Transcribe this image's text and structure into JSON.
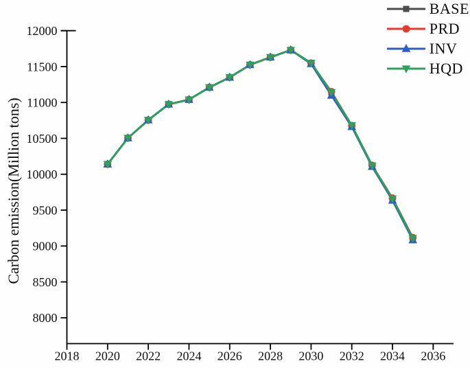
{
  "figure": {
    "background": "#fefefe",
    "axis_color": "#000000",
    "text_color": "#111111"
  },
  "chart_data": {
    "type": "line",
    "title": "",
    "xlabel": "",
    "ylabel": "Carbon emission(Million tons)",
    "xlim": [
      2018,
      2037
    ],
    "ylim": [
      7640,
      12000
    ],
    "xticks": [
      2018,
      2020,
      2022,
      2024,
      2026,
      2028,
      2030,
      2032,
      2034,
      2036
    ],
    "yticks": [
      8000,
      8500,
      9000,
      9500,
      10000,
      10500,
      11000,
      11500,
      12000
    ],
    "grid": false,
    "legend_position": "top-right",
    "x": [
      2020,
      2021,
      2022,
      2023,
      2024,
      2025,
      2026,
      2027,
      2028,
      2029,
      2030,
      2031,
      2032,
      2033,
      2034,
      2035
    ],
    "series": [
      {
        "name": "BASE",
        "color": "#4d4d4d",
        "marker": "square",
        "values": [
          10140,
          10505,
          10755,
          10975,
          11040,
          11210,
          11350,
          11525,
          11630,
          11730,
          11550,
          11140,
          10680,
          10120,
          9660,
          9110
        ]
      },
      {
        "name": "PRD",
        "color": "#e8392e",
        "marker": "circle",
        "values": [
          10140,
          10505,
          10755,
          10975,
          11040,
          11210,
          11350,
          11525,
          11630,
          11730,
          11548,
          11150,
          10678,
          10124,
          9668,
          9118
        ]
      },
      {
        "name": "INV",
        "color": "#2b5fc7",
        "marker": "triangle-up",
        "values": [
          10140,
          10505,
          10755,
          10975,
          11040,
          11210,
          11350,
          11525,
          11630,
          11730,
          11538,
          11098,
          10662,
          10106,
          9636,
          9084
        ]
      },
      {
        "name": "HQD",
        "color": "#2da05e",
        "marker": "triangle-down",
        "values": [
          10140,
          10505,
          10755,
          10975,
          11040,
          11210,
          11350,
          11525,
          11630,
          11730,
          11550,
          11142,
          10680,
          10120,
          9660,
          9108
        ]
      }
    ]
  }
}
